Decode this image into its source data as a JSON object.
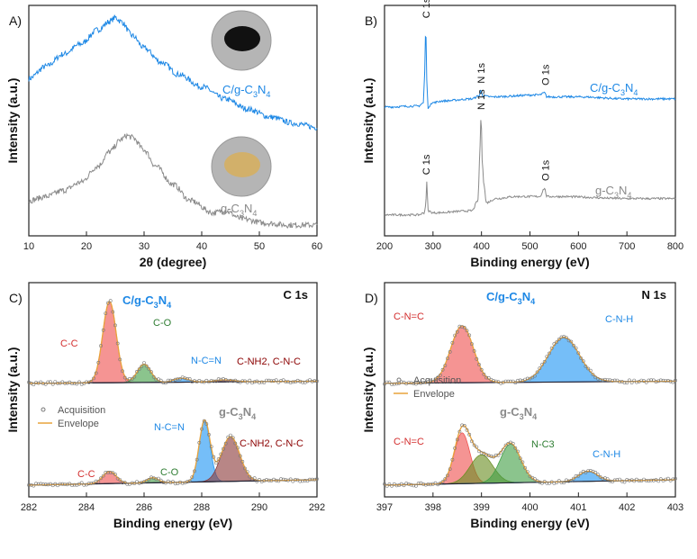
{
  "chart_data": [
    {
      "panel": "A)",
      "type": "line",
      "xlabel": "2θ (degree)",
      "ylabel": "Intensity (a.u.)",
      "xlim": [
        10,
        60
      ],
      "xticks": [
        10,
        20,
        30,
        40,
        50,
        60
      ],
      "series": [
        {
          "name": "C/g-C3N4",
          "color": "#1e88e5",
          "x": [
            10,
            13,
            16,
            19,
            22,
            24,
            25,
            26,
            28,
            30,
            33,
            36,
            40,
            44,
            48,
            52,
            56,
            60
          ],
          "y": [
            0.72,
            0.78,
            0.84,
            0.89,
            0.96,
            1.0,
            1.02,
            1.0,
            0.93,
            0.87,
            0.8,
            0.74,
            0.68,
            0.62,
            0.57,
            0.53,
            0.5,
            0.48
          ]
        },
        {
          "name": "g-C3N4",
          "color": "#8a8a8a",
          "x": [
            10,
            13,
            16,
            19,
            22,
            24,
            26,
            27,
            28,
            30,
            32,
            35,
            38,
            42,
            44,
            47,
            51,
            55,
            60
          ],
          "y": [
            0.12,
            0.14,
            0.17,
            0.21,
            0.29,
            0.36,
            0.42,
            0.44,
            0.43,
            0.37,
            0.29,
            0.2,
            0.12,
            0.06,
            0.07,
            0.03,
            0.01,
            0.0,
            0.0
          ]
        }
      ],
      "annotations": [
        {
          "text": "C/g-C",
          "sub1": "3",
          "mid": "N",
          "sub2": "4",
          "color": "#1e88e5"
        },
        {
          "text": "g-C",
          "sub1": "3",
          "mid": "N",
          "sub2": "4",
          "color": "#8a8a8a"
        }
      ]
    },
    {
      "panel": "B)",
      "type": "line",
      "xlabel": "Binding energy (eV)",
      "ylabel": "Intensity (a.u.)",
      "xlim": [
        200,
        800
      ],
      "xticks": [
        200,
        300,
        400,
        500,
        600,
        700,
        800
      ],
      "series": [
        {
          "name": "C/g-C3N4",
          "color": "#1e88e5",
          "x": [
            200,
            270,
            280,
            283,
            285,
            287,
            290,
            296,
            320,
            380,
            395,
            399,
            403,
            420,
            520,
            530,
            535,
            600,
            700,
            800
          ],
          "y": [
            0.58,
            0.585,
            0.6,
            0.75,
            1.0,
            0.72,
            0.57,
            0.6,
            0.61,
            0.62,
            0.635,
            0.66,
            0.635,
            0.63,
            0.64,
            0.65,
            0.63,
            0.63,
            0.62,
            0.62
          ]
        },
        {
          "name": "g-C3N4",
          "color": "#8a8a8a",
          "x": [
            200,
            270,
            282,
            285,
            287,
            290,
            300,
            380,
            393,
            396,
            399,
            402,
            405,
            410,
            430,
            470,
            520,
            530,
            535,
            560,
            700,
            800
          ],
          "y": [
            0.05,
            0.05,
            0.06,
            0.1,
            0.21,
            0.07,
            0.06,
            0.07,
            0.12,
            0.32,
            0.53,
            0.3,
            0.2,
            0.11,
            0.13,
            0.14,
            0.14,
            0.18,
            0.14,
            0.14,
            0.13,
            0.13
          ]
        }
      ],
      "peak_labels": [
        "C 1s",
        "N 1s",
        "O 1s",
        "C 1s",
        "N 1s",
        "O 1s"
      ],
      "annotations": [
        {
          "text": "C/g-C",
          "sub1": "3",
          "mid": "N",
          "sub2": "4",
          "color": "#1e88e5"
        },
        {
          "text": "g-C",
          "sub1": "3",
          "mid": "N",
          "sub2": "4",
          "color": "#8a8a8a"
        }
      ]
    },
    {
      "panel": "C)",
      "type": "area",
      "title": "C 1s",
      "xlabel": "Binding energy (eV)",
      "ylabel": "Intensity (a.u.)",
      "xlim": [
        282,
        292
      ],
      "xticks": [
        282,
        284,
        286,
        288,
        290,
        292
      ],
      "legend": [
        "Acquisition",
        "Envelope"
      ],
      "top_components": [
        {
          "label": "C-C",
          "center": 284.8,
          "height": 0.4,
          "width": 0.55,
          "color": "#ef5350"
        },
        {
          "label": "C-O",
          "center": 286.0,
          "height": 0.09,
          "width": 0.55,
          "color": "#43a047"
        },
        {
          "label": "N-C=N",
          "center": 287.3,
          "height": 0.02,
          "width": 0.6,
          "color": "#2196f3"
        },
        {
          "label": "C-NH2, C-N-C",
          "center": 288.8,
          "height": 0.01,
          "width": 0.8,
          "color": "#8d3b3b"
        }
      ],
      "bottom_components": [
        {
          "label": "C-C",
          "center": 284.8,
          "height": 0.06,
          "width": 0.55,
          "color": "#ef5350"
        },
        {
          "label": "C-O",
          "center": 286.3,
          "height": 0.025,
          "width": 0.45,
          "color": "#43a047"
        },
        {
          "label": "N-C=N",
          "center": 288.1,
          "height": 0.3,
          "width": 0.45,
          "color": "#2196f3"
        },
        {
          "label": "C-NH2, C-N-C",
          "center": 289.0,
          "height": 0.22,
          "width": 0.75,
          "color": "#8d3b3b"
        }
      ],
      "annotations": [
        {
          "text": "C/g-C",
          "sub1": "3",
          "mid": "N",
          "sub2": "4",
          "color": "#1e88e5"
        },
        {
          "text": "g-C",
          "sub1": "3",
          "mid": "N",
          "sub2": "4",
          "color": "#8a8a8a"
        }
      ]
    },
    {
      "panel": "D)",
      "type": "area",
      "title": "N 1s",
      "xlabel": "Binding energy (eV)",
      "ylabel": "Intensity (a.u.)",
      "xlim": [
        397,
        403
      ],
      "xticks": [
        397,
        398,
        399,
        400,
        401,
        402,
        403
      ],
      "legend": [
        "Acquisition",
        "Envelope"
      ],
      "top_components": [
        {
          "label": "C-N=C",
          "center": 398.6,
          "height": 0.28,
          "width": 0.55,
          "color": "#ef5350"
        },
        {
          "label": "C-N-H",
          "center": 400.7,
          "height": 0.22,
          "width": 0.75,
          "color": "#2196f3"
        }
      ],
      "bottom_components": [
        {
          "label": "C-N=C",
          "center": 398.6,
          "height": 0.25,
          "width": 0.38,
          "color": "#ef5350"
        },
        {
          "label": "",
          "center": 399.0,
          "height": 0.14,
          "width": 0.55,
          "color": "#6b8e23"
        },
        {
          "label": "N-C3",
          "center": 399.6,
          "height": 0.19,
          "width": 0.5,
          "color": "#43a047"
        },
        {
          "label": "C-N-H",
          "center": 401.2,
          "height": 0.05,
          "width": 0.45,
          "color": "#2196f3"
        }
      ],
      "annotations": [
        {
          "text": "C/g-C",
          "sub1": "3",
          "mid": "N",
          "sub2": "4",
          "color": "#1e88e5"
        },
        {
          "text": "g-C",
          "sub1": "3",
          "mid": "N",
          "sub2": "4",
          "color": "#8a8a8a"
        }
      ]
    }
  ]
}
